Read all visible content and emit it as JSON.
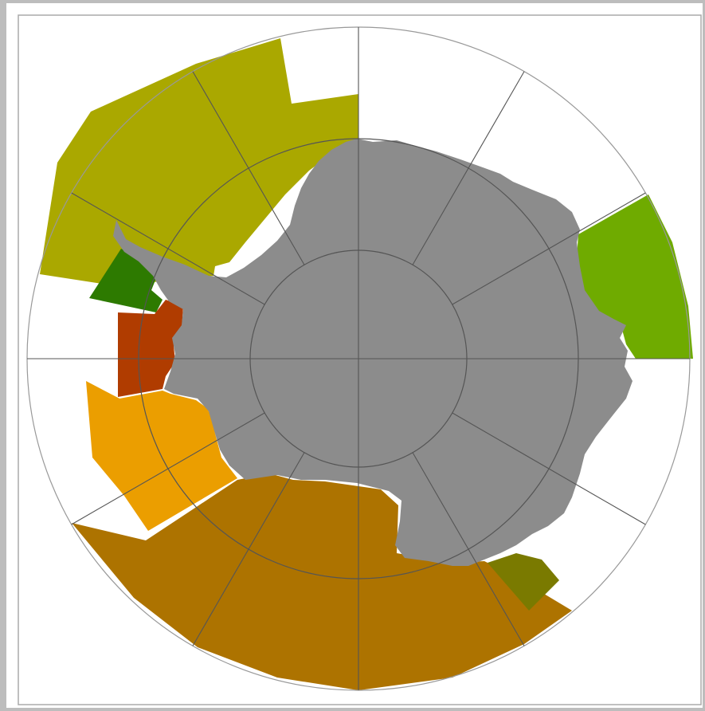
{
  "map": {
    "projection": "south-polar-stereographic",
    "graticule": {
      "meridian_step_deg": 30,
      "circles": 3,
      "line_color": "#555555",
      "outer_line_color": "#999999"
    },
    "land_color": "#8c8c8c",
    "ocean_color": "#ffffff",
    "regions": [
      {
        "id": "sector-olive-yellow",
        "color": "#aaa800"
      },
      {
        "id": "sector-dark-green",
        "color": "#2d7a00"
      },
      {
        "id": "sector-rust",
        "color": "#b03c00"
      },
      {
        "id": "sector-orange",
        "color": "#eb9e00"
      },
      {
        "id": "sector-brown",
        "color": "#ad7300"
      },
      {
        "id": "sector-dark-olive",
        "color": "#7a7a00"
      },
      {
        "id": "sector-green",
        "color": "#6fab00"
      }
    ]
  }
}
